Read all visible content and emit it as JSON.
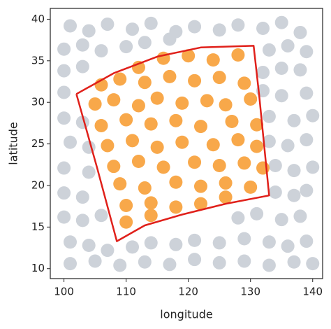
{
  "chart_data": {
    "type": "scatter",
    "x_label": "longitude",
    "y_label": "latitude",
    "xlim": [
      97.8,
      141.6
    ],
    "ylim": [
      8.8,
      41.3
    ],
    "xticks": [
      100,
      110,
      120,
      130,
      140
    ],
    "yticks": [
      10,
      15,
      20,
      25,
      30,
      35,
      40
    ],
    "grid": true,
    "series": [
      {
        "color": "#cdd2d9",
        "x": [
          101,
          104,
          107,
          111,
          114,
          118,
          121,
          125,
          128,
          132,
          135,
          138,
          100,
          103,
          106,
          110,
          113,
          117,
          133,
          136,
          139,
          100,
          103,
          132,
          135,
          138,
          100,
          132,
          135,
          139,
          100,
          103,
          133,
          137,
          140,
          101,
          104,
          133,
          136,
          139,
          100,
          104,
          134,
          137,
          140,
          100,
          103,
          134,
          137,
          139,
          100,
          103,
          106,
          128,
          131,
          135,
          138,
          101,
          104,
          107,
          111,
          114,
          118,
          121,
          125,
          129,
          133,
          136,
          139,
          101,
          105,
          109,
          113,
          117,
          121,
          125,
          129,
          133,
          137,
          140
        ],
        "y": [
          39.2,
          38.6,
          39.4,
          38.8,
          39.5,
          38.5,
          39.1,
          38.7,
          39.3,
          38.9,
          39.6,
          38.4,
          36.4,
          36.9,
          36.2,
          36.7,
          37.2,
          37.6,
          36.3,
          36.8,
          36.1,
          33.8,
          34.3,
          33.6,
          34.1,
          33.9,
          31.2,
          31.4,
          30.8,
          31.1,
          28.1,
          27.6,
          28.3,
          27.8,
          28.4,
          25.2,
          24.6,
          25.3,
          24.8,
          25.5,
          22.1,
          21.6,
          22.4,
          21.8,
          22.2,
          19.1,
          18.6,
          19.2,
          18.8,
          19.4,
          16.2,
          15.8,
          16.4,
          16.1,
          16.6,
          15.9,
          16.3,
          13.2,
          12.8,
          12.2,
          12.6,
          13.1,
          12.9,
          13.4,
          13.1,
          13.6,
          13.2,
          12.7,
          13.3,
          10.6,
          10.9,
          10.4,
          10.8,
          10.5,
          11.1,
          10.7,
          10.9,
          10.4,
          10.8,
          10.6
        ]
      },
      {
        "color": "#f8a84a",
        "x": [
          112,
          116,
          120,
          124,
          128,
          106,
          109,
          113,
          117,
          121,
          125,
          129,
          105,
          108,
          112,
          115,
          119,
          123,
          126,
          130,
          106,
          110,
          114,
          118,
          122,
          127,
          131,
          107,
          111,
          115,
          119,
          124,
          128,
          131,
          108,
          112,
          116,
          121,
          125,
          129,
          132,
          109,
          113,
          118,
          122,
          126,
          130,
          110,
          114,
          118,
          122,
          126,
          110,
          114
        ],
        "y": [
          34.2,
          35.3,
          35.6,
          35.1,
          35.7,
          32.1,
          32.8,
          32.4,
          33.1,
          32.6,
          33.0,
          32.3,
          29.8,
          30.3,
          29.6,
          30.5,
          29.9,
          30.2,
          29.7,
          30.4,
          27.2,
          27.9,
          27.4,
          27.8,
          27.1,
          27.7,
          27.3,
          24.8,
          25.4,
          24.6,
          25.2,
          24.9,
          25.5,
          24.7,
          22.3,
          22.9,
          22.2,
          22.8,
          22.4,
          22.7,
          22.1,
          20.2,
          19.7,
          20.4,
          19.9,
          20.3,
          19.8,
          17.6,
          17.9,
          17.4,
          17.8,
          18.6,
          15.6,
          16.4
        ]
      }
    ],
    "polygon": {
      "color": "#e0201a",
      "lon": [
        102,
        108,
        115,
        122,
        130.5,
        131.4,
        132.2,
        133,
        126,
        119,
        113,
        108.5,
        105.3,
        102
      ],
      "lat": [
        31,
        33.5,
        35.5,
        36.6,
        36.8,
        30.8,
        24.8,
        18.8,
        17.8,
        16.5,
        15.2,
        13.3,
        22.2,
        31
      ]
    }
  }
}
